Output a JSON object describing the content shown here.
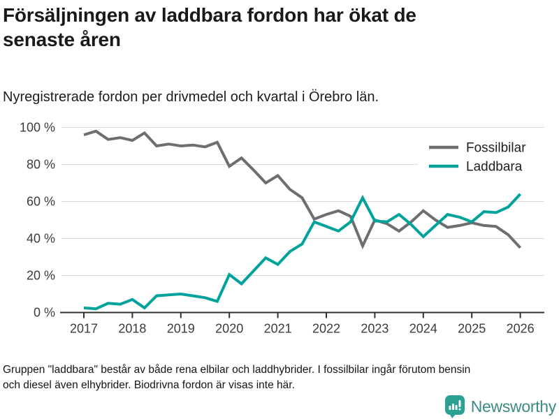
{
  "chart_data": {
    "type": "line",
    "title": "Försäljningen av laddbara fordon har ökat de senaste åren",
    "subtitle": "Nyregistrerade fordon per drivmedel och kvartal i Örebro län.",
    "footnote_lines": [
      "Gruppen \"laddbara\" består av både rena elbilar och laddhybrider. I fossilbilar ingår förutom bensin",
      "och diesel även elhybrider. Biodrivna fordon är visas inte här."
    ],
    "x_start": 2017,
    "x_step": 0.25,
    "x_unit": "quarter",
    "x_ticks": [
      2017,
      2018,
      2019,
      2020,
      2021,
      2022,
      2023,
      2024,
      2025,
      2026
    ],
    "x_tick_labels": [
      "2017",
      "2018",
      "2019",
      "2020",
      "2021",
      "2022",
      "2023",
      "2024",
      "2025",
      "2026"
    ],
    "y_ticks": [
      0,
      20,
      40,
      60,
      80,
      100
    ],
    "y_tick_labels": [
      "0 %",
      "20 %",
      "40 %",
      "60 %",
      "80 %",
      "100 %"
    ],
    "ylim": [
      0,
      100
    ],
    "grid": "horizontal",
    "legend_position": "top-right",
    "series": [
      {
        "name": "Fossilbilar",
        "color": "#6d6e71",
        "values": [
          96,
          98,
          93.5,
          94.5,
          93,
          97,
          90,
          91,
          90,
          90.5,
          89.5,
          92,
          79,
          83.5,
          77,
          70,
          74,
          66.5,
          62,
          50.5,
          53,
          55,
          52,
          36,
          50,
          48,
          44,
          49,
          55,
          50,
          46,
          47,
          48.5,
          47,
          46.5,
          42,
          35
        ]
      },
      {
        "name": "Laddbara",
        "color": "#00a39b",
        "values": [
          2.5,
          2,
          5,
          4.5,
          7,
          2.5,
          9,
          9.5,
          10,
          9,
          8,
          6,
          20.5,
          15.5,
          22.5,
          29.5,
          26,
          33,
          37,
          49,
          46.5,
          44,
          49,
          62,
          49.5,
          49,
          53,
          47.5,
          41,
          47,
          53,
          51.5,
          49,
          54.5,
          54,
          57,
          64
        ]
      }
    ]
  },
  "footer": {
    "brand": "Newsworthy"
  },
  "colors": {
    "axis": "#2f2f2f",
    "gridline": "#dadada",
    "tick_label": "#3c3c3c",
    "legend_text": "#1f1f1f",
    "brand_teal": "#2ba193",
    "brand_text": "#3a8b85"
  }
}
